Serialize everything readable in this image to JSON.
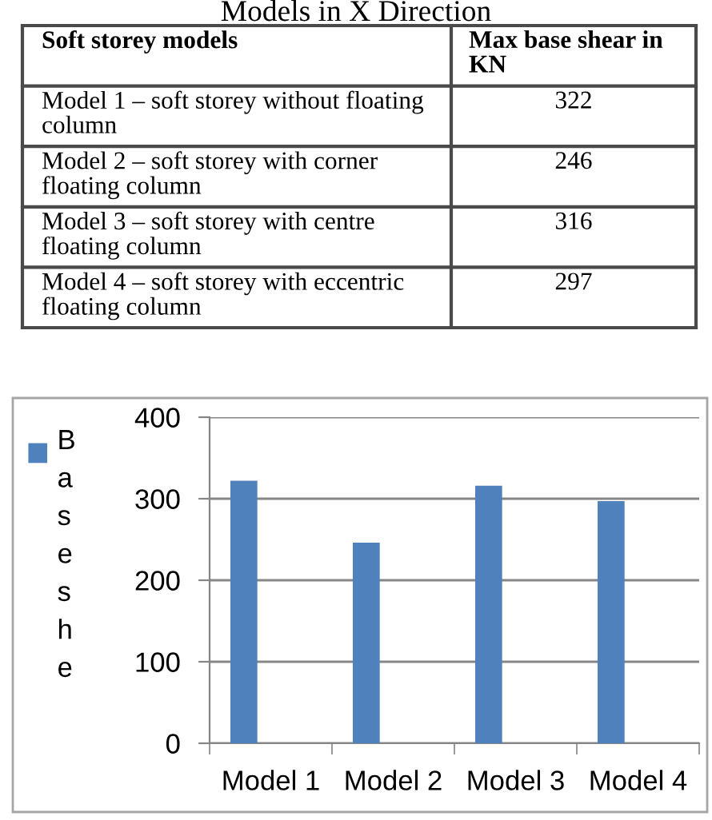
{
  "chart_data": {
    "type": "bar",
    "title": "Models in X Direction",
    "categories": [
      "Model 1",
      "Model 2",
      "Model 3",
      "Model 4"
    ],
    "series": [
      {
        "name": "Base she",
        "color": "#4f81bd",
        "values": [
          322,
          246,
          316,
          297
        ]
      }
    ],
    "ylim": [
      0,
      400
    ],
    "yticks": [
      0,
      100,
      200,
      300,
      400
    ],
    "grid": "y",
    "legend": "left",
    "annotations": [
      "Soft storey models",
      "Max base shear in\nKN",
      "Model 1 – soft storey without floating\ncolumn",
      "322",
      "Model 2 – soft storey with corner\nfloating column",
      "246",
      "Model 3 – soft storey with centre\nfloating column",
      "316",
      "Model 4 – soft storey with eccentric\nfloating column",
      "297"
    ]
  }
}
